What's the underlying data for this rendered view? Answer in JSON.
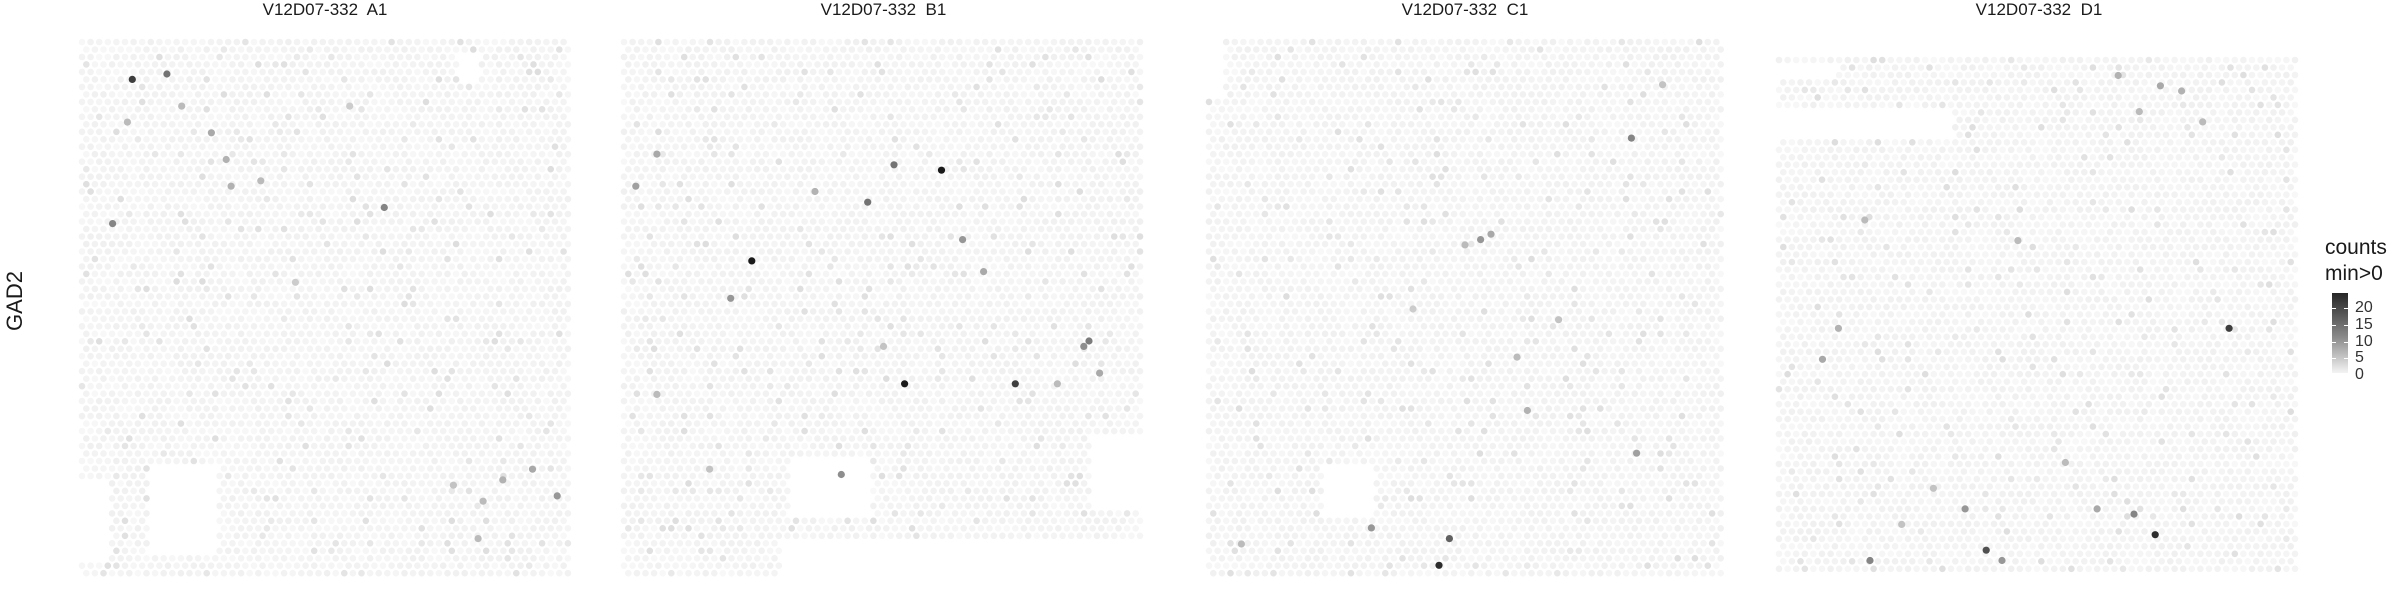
{
  "chart_data": {
    "type": "heatmap",
    "plot_kind": "spatial spot map (hexagonal spots shaded by counts)",
    "feature": "GAD2",
    "color_scale": {
      "title_line1": "counts",
      "title_line2": "min>0",
      "ticks": [
        20,
        15,
        10,
        5,
        0
      ],
      "range": [
        0,
        24
      ],
      "low_color": "#f2f2f2",
      "high_color": "#1a1a1a",
      "zero_color": "#f7f7f7"
    },
    "panels": [
      {
        "title": "V12D07-332  A1",
        "highlighted_spots": [
          {
            "x": 0.11,
            "y": 0.07,
            "count": 20
          },
          {
            "x": 0.18,
            "y": 0.06,
            "count": 14
          },
          {
            "x": 0.07,
            "y": 0.34,
            "count": 12
          },
          {
            "x": 0.62,
            "y": 0.31,
            "count": 12
          },
          {
            "x": 0.27,
            "y": 0.17,
            "count": 8
          },
          {
            "x": 0.3,
            "y": 0.22,
            "count": 7
          },
          {
            "x": 0.21,
            "y": 0.12,
            "count": 6
          },
          {
            "x": 0.1,
            "y": 0.15,
            "count": 6
          },
          {
            "x": 0.31,
            "y": 0.27,
            "count": 7
          },
          {
            "x": 0.37,
            "y": 0.26,
            "count": 6
          },
          {
            "x": 0.92,
            "y": 0.8,
            "count": 8
          },
          {
            "x": 0.97,
            "y": 0.85,
            "count": 10
          },
          {
            "x": 0.86,
            "y": 0.82,
            "count": 7
          },
          {
            "x": 0.82,
            "y": 0.86,
            "count": 6
          },
          {
            "x": 0.81,
            "y": 0.93,
            "count": 6
          },
          {
            "x": 0.76,
            "y": 0.83,
            "count": 5
          },
          {
            "x": 0.55,
            "y": 0.12,
            "count": 4
          },
          {
            "x": 0.44,
            "y": 0.45,
            "count": 4
          }
        ]
      },
      {
        "title": "V12D07-332  B1",
        "highlighted_spots": [
          {
            "x": 0.61,
            "y": 0.24,
            "count": 24
          },
          {
            "x": 0.25,
            "y": 0.41,
            "count": 24
          },
          {
            "x": 0.54,
            "y": 0.64,
            "count": 24
          },
          {
            "x": 0.75,
            "y": 0.64,
            "count": 20
          },
          {
            "x": 0.47,
            "y": 0.3,
            "count": 14
          },
          {
            "x": 0.52,
            "y": 0.23,
            "count": 14
          },
          {
            "x": 0.89,
            "y": 0.56,
            "count": 13
          },
          {
            "x": 0.88,
            "y": 0.57,
            "count": 11
          },
          {
            "x": 0.65,
            "y": 0.37,
            "count": 10
          },
          {
            "x": 0.42,
            "y": 0.81,
            "count": 11
          },
          {
            "x": 0.21,
            "y": 0.48,
            "count": 10
          },
          {
            "x": 0.03,
            "y": 0.27,
            "count": 9
          },
          {
            "x": 0.07,
            "y": 0.21,
            "count": 8
          },
          {
            "x": 0.69,
            "y": 0.43,
            "count": 8
          },
          {
            "x": 0.91,
            "y": 0.62,
            "count": 8
          },
          {
            "x": 0.37,
            "y": 0.28,
            "count": 7
          },
          {
            "x": 0.07,
            "y": 0.66,
            "count": 6
          },
          {
            "x": 0.83,
            "y": 0.64,
            "count": 6
          },
          {
            "x": 0.17,
            "y": 0.8,
            "count": 5
          },
          {
            "x": 0.5,
            "y": 0.57,
            "count": 5
          }
        ]
      },
      {
        "title": "V12D07-332  C1",
        "highlighted_spots": [
          {
            "x": 0.45,
            "y": 0.98,
            "count": 22
          },
          {
            "x": 0.47,
            "y": 0.93,
            "count": 16
          },
          {
            "x": 0.82,
            "y": 0.18,
            "count": 12
          },
          {
            "x": 0.32,
            "y": 0.91,
            "count": 10
          },
          {
            "x": 0.53,
            "y": 0.37,
            "count": 10
          },
          {
            "x": 0.83,
            "y": 0.77,
            "count": 9
          },
          {
            "x": 0.55,
            "y": 0.36,
            "count": 8
          },
          {
            "x": 0.6,
            "y": 0.59,
            "count": 6
          },
          {
            "x": 0.62,
            "y": 0.69,
            "count": 7
          },
          {
            "x": 0.07,
            "y": 0.94,
            "count": 6
          },
          {
            "x": 0.5,
            "y": 0.38,
            "count": 6
          },
          {
            "x": 0.88,
            "y": 0.08,
            "count": 5
          },
          {
            "x": 0.4,
            "y": 0.5,
            "count": 4
          },
          {
            "x": 0.68,
            "y": 0.52,
            "count": 5
          }
        ]
      },
      {
        "title": "V12D07-332  D1",
        "highlighted_spots": [
          {
            "x": 0.72,
            "y": 0.92,
            "count": 22
          },
          {
            "x": 0.4,
            "y": 0.95,
            "count": 18
          },
          {
            "x": 0.86,
            "y": 0.52,
            "count": 20
          },
          {
            "x": 0.18,
            "y": 0.97,
            "count": 12
          },
          {
            "x": 0.68,
            "y": 0.88,
            "count": 12
          },
          {
            "x": 0.36,
            "y": 0.87,
            "count": 10
          },
          {
            "x": 0.43,
            "y": 0.97,
            "count": 10
          },
          {
            "x": 0.09,
            "y": 0.58,
            "count": 8
          },
          {
            "x": 0.12,
            "y": 0.52,
            "count": 7
          },
          {
            "x": 0.61,
            "y": 0.87,
            "count": 8
          },
          {
            "x": 0.65,
            "y": 0.03,
            "count": 7
          },
          {
            "x": 0.73,
            "y": 0.05,
            "count": 8
          },
          {
            "x": 0.77,
            "y": 0.06,
            "count": 7
          },
          {
            "x": 0.69,
            "y": 0.1,
            "count": 6
          },
          {
            "x": 0.17,
            "y": 0.31,
            "count": 6
          },
          {
            "x": 0.46,
            "y": 0.35,
            "count": 6
          },
          {
            "x": 0.81,
            "y": 0.12,
            "count": 6
          },
          {
            "x": 0.55,
            "y": 0.78,
            "count": 6
          },
          {
            "x": 0.24,
            "y": 0.9,
            "count": 5
          },
          {
            "x": 0.3,
            "y": 0.83,
            "count": 5
          }
        ]
      }
    ]
  }
}
